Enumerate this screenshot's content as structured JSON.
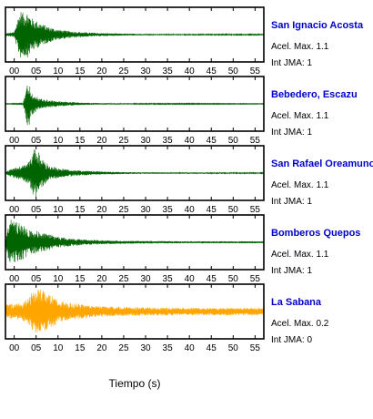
{
  "chart_data": {
    "type": "line",
    "xlabel": "Tiempo (s)",
    "xlim": [
      -2,
      57
    ],
    "xticks": [
      "00",
      "05",
      "10",
      "15",
      "20",
      "25",
      "30",
      "35",
      "40",
      "45",
      "50",
      "55"
    ],
    "label_color": "#0000cc",
    "stations": [
      {
        "name": "San Ignacio Acosta",
        "acel_label": "Acel. Max. 1.1",
        "int_label": "Int JMA: 1",
        "color": "#006400",
        "envelope": {
          "x": [
            -2,
            0,
            0.5,
            1,
            1.5,
            2,
            3,
            4,
            5,
            6,
            8,
            10,
            12,
            15,
            20,
            25,
            30,
            40,
            57
          ],
          "y": [
            0.05,
            0.1,
            0.45,
            0.75,
            0.95,
            0.85,
            0.9,
            0.65,
            0.55,
            0.45,
            0.3,
            0.2,
            0.15,
            0.1,
            0.06,
            0.04,
            0.03,
            0.02,
            0.02
          ]
        }
      },
      {
        "name": "Bebedero, Escazu",
        "acel_label": "Acel. Max. 1.1",
        "int_label": "Int JMA: 1",
        "color": "#006400",
        "envelope": {
          "x": [
            -2,
            2,
            2.5,
            3,
            3.5,
            4,
            5,
            6,
            8,
            10,
            12,
            15,
            20,
            30,
            57
          ],
          "y": [
            0.01,
            0.02,
            0.4,
            0.95,
            0.8,
            0.45,
            0.3,
            0.2,
            0.15,
            0.1,
            0.08,
            0.05,
            0.03,
            0.02,
            0.01
          ]
        }
      },
      {
        "name": "San Rafael Oreamuno",
        "acel_label": "Acel. Max. 1.1",
        "int_label": "Int JMA: 1",
        "color": "#006400",
        "envelope": {
          "x": [
            -2,
            0,
            2,
            3,
            4,
            4.5,
            5,
            5.5,
            6,
            7,
            8,
            10,
            12,
            15,
            20,
            25,
            30,
            57
          ],
          "y": [
            0.05,
            0.2,
            0.3,
            0.4,
            0.7,
            0.95,
            1.0,
            0.85,
            0.6,
            0.45,
            0.3,
            0.2,
            0.15,
            0.1,
            0.06,
            0.04,
            0.03,
            0.02
          ]
        }
      },
      {
        "name": "Bomberos Quepos",
        "acel_label": "Acel. Max. 1.1",
        "int_label": "Int JMA: 1",
        "color": "#006400",
        "envelope": {
          "x": [
            -2,
            -1.5,
            -1,
            0,
            1,
            2,
            3,
            4,
            5,
            6,
            8,
            10,
            12,
            15,
            20,
            25,
            30,
            40,
            57
          ],
          "y": [
            0.05,
            0.6,
            0.9,
            0.85,
            0.75,
            0.7,
            0.55,
            0.45,
            0.45,
            0.4,
            0.3,
            0.22,
            0.17,
            0.12,
            0.08,
            0.06,
            0.05,
            0.04,
            0.04
          ]
        }
      },
      {
        "name": "La Sabana",
        "acel_label": "Acel. Max. 0.2",
        "int_label": "Int JMA: 0",
        "color": "#ffa500",
        "envelope": {
          "x": [
            -2,
            0,
            2,
            3,
            4,
            5,
            6,
            7,
            8,
            9,
            10,
            12,
            15,
            18,
            20,
            25,
            30,
            40,
            57
          ],
          "y": [
            0.3,
            0.3,
            0.35,
            0.5,
            0.75,
            0.85,
            0.9,
            0.75,
            0.65,
            0.6,
            0.45,
            0.35,
            0.3,
            0.22,
            0.2,
            0.18,
            0.16,
            0.15,
            0.14
          ]
        }
      }
    ]
  }
}
